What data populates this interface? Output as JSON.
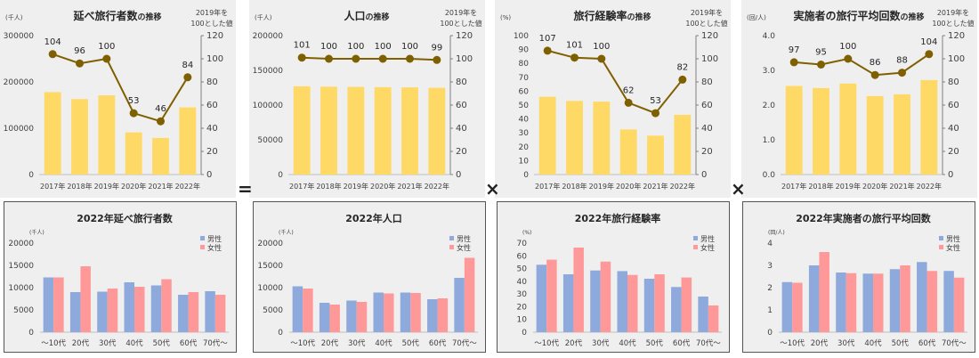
{
  "colors": {
    "bar": "#FFD966",
    "line": "#7F6000",
    "male": "#8EA9DB",
    "female": "#FF9999",
    "panel": "#EFEFEF"
  },
  "operators": [
    "=",
    "×",
    "×"
  ],
  "chart_data": [
    {
      "type": "bar+line",
      "title_main": "延べ旅行者数",
      "title_suffix": "の推移",
      "left_unit": "(千人)",
      "right_label": [
        "2019年を",
        "100とした値"
      ],
      "categories": [
        "2017年",
        "2018年",
        "2019年",
        "2020年",
        "2021年",
        "2022年"
      ],
      "bar_values": [
        178000,
        163000,
        171000,
        91000,
        79000,
        145000
      ],
      "index_values": [
        104,
        96,
        100,
        53,
        46,
        84
      ],
      "ylim_left": [
        0,
        300000
      ],
      "ylim_left_step": 100000,
      "ylim_right": [
        0,
        120
      ],
      "ylim_right_step": 20,
      "left_ticks": [
        "0",
        "100000",
        "200000",
        "300000"
      ]
    },
    {
      "type": "bar+line",
      "title_main": "人口",
      "title_suffix": "の推移",
      "left_unit": "(千人)",
      "right_label": [
        "2019年を",
        "100とした値"
      ],
      "categories": [
        "2017年",
        "2018年",
        "2019年",
        "2020年",
        "2021年",
        "2022年"
      ],
      "bar_values": [
        127000,
        126500,
        126200,
        125800,
        125500,
        124900
      ],
      "index_values": [
        101,
        100,
        100,
        100,
        100,
        99
      ],
      "ylim_left": [
        0,
        200000
      ],
      "ylim_left_step": 50000,
      "ylim_right": [
        0,
        120
      ],
      "ylim_right_step": 20,
      "left_ticks": [
        "0",
        "50000",
        "100000",
        "150000",
        "200000"
      ]
    },
    {
      "type": "bar+line",
      "title_main": "旅行経験率",
      "title_suffix": "の推移",
      "left_unit": "(%)",
      "right_label": [
        "2019年を",
        "100とした値"
      ],
      "categories": [
        "2017年",
        "2018年",
        "2019年",
        "2020年",
        "2021年",
        "2022年"
      ],
      "bar_values": [
        56,
        53,
        52.5,
        32.5,
        28,
        43
      ],
      "index_values": [
        107,
        101,
        100,
        62,
        53,
        82
      ],
      "ylim_left": [
        0,
        100
      ],
      "ylim_left_step": 10,
      "ylim_right": [
        0,
        120
      ],
      "ylim_right_step": 20,
      "left_ticks": [
        "0",
        "10",
        "20",
        "30",
        "40",
        "50",
        "60",
        "70",
        "80",
        "90",
        "100"
      ]
    },
    {
      "type": "bar+line",
      "title_main": "実施者の旅行平均回数",
      "title_suffix": "の推移",
      "left_unit": "(回/人)",
      "right_label": [
        "2019年を",
        "100とした値"
      ],
      "categories": [
        "2017年",
        "2018年",
        "2019年",
        "2020年",
        "2021年",
        "2022年"
      ],
      "bar_values": [
        2.55,
        2.49,
        2.62,
        2.26,
        2.31,
        2.72
      ],
      "index_values": [
        97,
        95,
        100,
        86,
        88,
        104
      ],
      "ylim_left": [
        0,
        4
      ],
      "ylim_left_step": 1,
      "ylim_right": [
        0,
        120
      ],
      "ylim_right_step": 20,
      "left_ticks": [
        "0.0",
        "1.0",
        "2.0",
        "3.0",
        "4.0"
      ]
    },
    {
      "type": "bar",
      "title": "2022年延べ旅行者数",
      "unit": "(千人)",
      "categories": [
        "～10代",
        "20代",
        "30代",
        "40代",
        "50代",
        "60代",
        "70代～"
      ],
      "series": [
        {
          "name": "男性",
          "values": [
            12300,
            9000,
            9100,
            11200,
            10500,
            8400,
            9200
          ]
        },
        {
          "name": "女性",
          "values": [
            12300,
            14800,
            9800,
            10200,
            11900,
            9000,
            8400
          ]
        }
      ],
      "ylim": [
        0,
        20000
      ],
      "ystep": 5000,
      "left_ticks": [
        "0",
        "5000",
        "10000",
        "15000",
        "20000"
      ],
      "legend": "top-right"
    },
    {
      "type": "bar",
      "title": "2022年人口",
      "unit": "(千人)",
      "categories": [
        "～10代",
        "20代",
        "30代",
        "40代",
        "50代",
        "60代",
        "70代～"
      ],
      "series": [
        {
          "name": "男性",
          "values": [
            10300,
            6600,
            7100,
            8900,
            8900,
            7400,
            12200
          ]
        },
        {
          "name": "女性",
          "values": [
            9800,
            6200,
            6800,
            8700,
            8800,
            7600,
            16700
          ]
        }
      ],
      "ylim": [
        0,
        20000
      ],
      "ystep": 5000,
      "left_ticks": [
        "0",
        "5000",
        "10000",
        "15000",
        "20000"
      ],
      "legend": "top-right"
    },
    {
      "type": "bar",
      "title": "2022年旅行経験率",
      "unit": "(%)",
      "categories": [
        "～10代",
        "20代",
        "30代",
        "40代",
        "50代",
        "60代",
        "70代～"
      ],
      "series": [
        {
          "name": "男性",
          "values": [
            53,
            45.5,
            48.5,
            48,
            42,
            35.5,
            28
          ]
        },
        {
          "name": "女性",
          "values": [
            57,
            66.5,
            55.5,
            45,
            45.5,
            43,
            21
          ]
        }
      ],
      "ylim": [
        0,
        70
      ],
      "ystep": 10,
      "left_ticks": [
        "0",
        "10",
        "20",
        "30",
        "40",
        "50",
        "60",
        "70"
      ],
      "legend": "top-right"
    },
    {
      "type": "bar",
      "title": "2022年実施者の旅行平均回数",
      "unit": "(回/人)",
      "categories": [
        "～10代",
        "20代",
        "30代",
        "40代",
        "50代",
        "60代",
        "70代～"
      ],
      "series": [
        {
          "name": "男性",
          "values": [
            2.25,
            3.0,
            2.68,
            2.63,
            2.83,
            3.15,
            2.75
          ]
        },
        {
          "name": "女性",
          "values": [
            2.22,
            3.6,
            2.65,
            2.63,
            3.0,
            2.75,
            2.45
          ]
        }
      ],
      "ylim": [
        0,
        4
      ],
      "ystep": 1,
      "left_ticks": [
        "0",
        "1",
        "2",
        "3",
        "4"
      ],
      "legend": "top-right"
    }
  ]
}
